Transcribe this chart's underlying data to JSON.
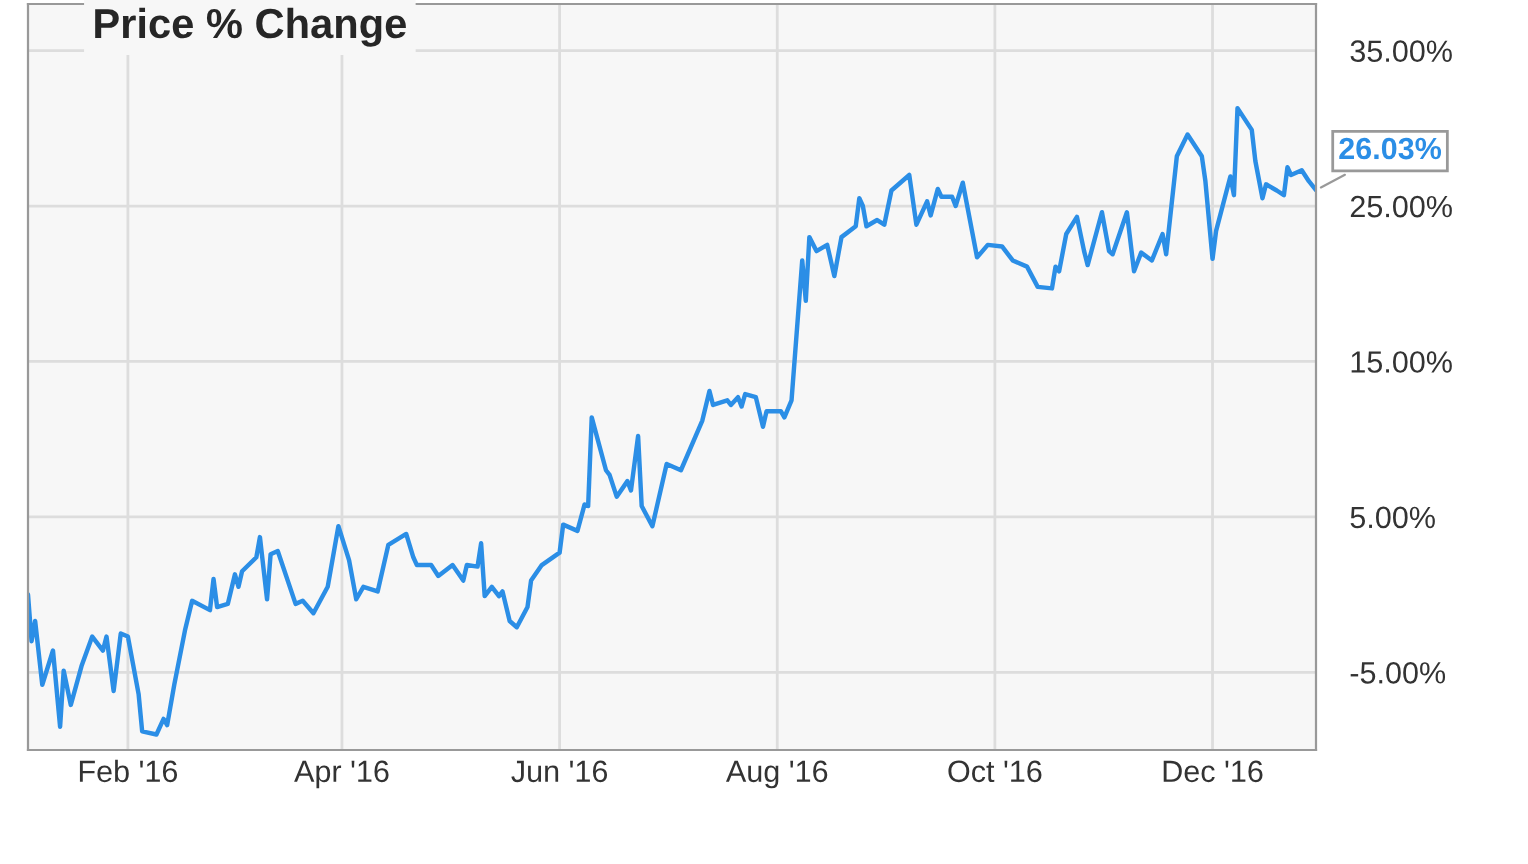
{
  "chart_data": {
    "type": "line",
    "title": "Price % Change",
    "x": [
      "2016-01-04",
      "2016-01-05",
      "2016-01-06",
      "2016-01-08",
      "2016-01-11",
      "2016-01-13",
      "2016-01-14",
      "2016-01-16",
      "2016-01-19",
      "2016-01-22",
      "2016-01-25",
      "2016-01-26",
      "2016-01-28",
      "2016-01-30",
      "2016-02-01",
      "2016-02-04",
      "2016-02-05",
      "2016-02-09",
      "2016-02-11",
      "2016-02-12",
      "2016-02-14",
      "2016-02-17",
      "2016-02-19",
      "2016-02-24",
      "2016-02-25",
      "2016-02-26",
      "2016-02-29",
      "2016-03-02",
      "2016-03-03",
      "2016-03-04",
      "2016-03-08",
      "2016-03-09",
      "2016-03-11",
      "2016-03-12",
      "2016-03-14",
      "2016-03-19",
      "2016-03-21",
      "2016-03-24",
      "2016-03-28",
      "2016-03-30",
      "2016-03-31",
      "2016-04-03",
      "2016-04-05",
      "2016-04-07",
      "2016-04-11",
      "2016-04-14",
      "2016-04-19",
      "2016-04-21",
      "2016-04-22",
      "2016-04-26",
      "2016-04-28",
      "2016-05-02",
      "2016-05-05",
      "2016-05-06",
      "2016-05-09",
      "2016-05-10",
      "2016-05-11",
      "2016-05-13",
      "2016-05-15",
      "2016-05-16",
      "2016-05-18",
      "2016-05-20",
      "2016-05-23",
      "2016-05-24",
      "2016-05-27",
      "2016-06-01",
      "2016-06-02",
      "2016-06-06",
      "2016-06-08",
      "2016-06-09",
      "2016-06-10",
      "2016-06-14",
      "2016-06-15",
      "2016-06-17",
      "2016-06-20",
      "2016-06-21",
      "2016-06-23",
      "2016-06-24",
      "2016-06-27",
      "2016-07-01",
      "2016-07-05",
      "2016-07-11",
      "2016-07-13",
      "2016-07-14",
      "2016-07-18",
      "2016-07-19",
      "2016-07-21",
      "2016-07-22",
      "2016-07-23",
      "2016-07-26",
      "2016-07-28",
      "2016-07-29",
      "2016-08-02",
      "2016-08-03",
      "2016-08-05",
      "2016-08-08",
      "2016-08-09",
      "2016-08-10",
      "2016-08-12",
      "2016-08-15",
      "2016-08-17",
      "2016-08-19",
      "2016-08-23",
      "2016-08-24",
      "2016-08-25",
      "2016-08-26",
      "2016-08-29",
      "2016-08-31",
      "2016-09-02",
      "2016-09-07",
      "2016-09-09",
      "2016-09-12",
      "2016-09-13",
      "2016-09-15",
      "2016-09-16",
      "2016-09-19",
      "2016-09-20",
      "2016-09-22",
      "2016-09-26",
      "2016-09-29",
      "2016-10-03",
      "2016-10-06",
      "2016-10-10",
      "2016-10-13",
      "2016-10-17",
      "2016-10-18",
      "2016-10-19",
      "2016-10-21",
      "2016-10-24",
      "2016-10-26",
      "2016-10-27",
      "2016-10-31",
      "2016-11-02",
      "2016-11-03",
      "2016-11-07",
      "2016-11-09",
      "2016-11-11",
      "2016-11-14",
      "2016-11-17",
      "2016-11-18",
      "2016-11-21",
      "2016-11-24",
      "2016-11-28",
      "2016-11-29",
      "2016-12-01",
      "2016-12-02",
      "2016-12-06",
      "2016-12-07",
      "2016-12-08",
      "2016-12-12",
      "2016-12-13",
      "2016-12-15",
      "2016-12-16",
      "2016-12-19",
      "2016-12-21",
      "2016-12-22",
      "2016-12-23",
      "2016-12-26",
      "2016-12-28",
      "2016-12-30"
    ],
    "series": [
      {
        "color": "#2b8ee6",
        "values": [
          0.0,
          -3.0,
          -1.7,
          -5.8,
          -3.6,
          -8.5,
          -4.9,
          -7.1,
          -4.6,
          -2.7,
          -3.6,
          -2.7,
          -6.2,
          -2.5,
          -2.7,
          -6.4,
          -8.8,
          -9.0,
          -8.0,
          -8.4,
          -5.8,
          -2.3,
          -0.4,
          -1.0,
          1.0,
          -0.8,
          -0.6,
          1.3,
          0.5,
          1.5,
          2.4,
          3.7,
          -0.3,
          2.6,
          2.8,
          -0.6,
          -0.4,
          -1.2,
          0.5,
          3.1,
          4.4,
          2.2,
          -0.3,
          0.5,
          0.2,
          3.2,
          3.9,
          2.4,
          1.9,
          1.9,
          1.2,
          1.9,
          0.9,
          1.9,
          1.8,
          3.3,
          -0.1,
          0.5,
          -0.1,
          0.2,
          -1.7,
          -2.1,
          -0.8,
          0.9,
          1.9,
          2.7,
          4.5,
          4.1,
          5.8,
          5.7,
          11.4,
          8.0,
          7.7,
          6.3,
          7.3,
          6.7,
          10.2,
          5.7,
          4.4,
          8.4,
          8.0,
          11.2,
          13.1,
          12.2,
          12.5,
          12.2,
          12.7,
          12.1,
          12.9,
          12.7,
          10.8,
          11.8,
          11.8,
          11.4,
          12.5,
          21.5,
          18.9,
          23.0,
          22.1,
          22.5,
          20.5,
          23.0,
          23.7,
          25.5,
          25.0,
          23.7,
          24.1,
          23.8,
          26.0,
          27.0,
          23.8,
          25.3,
          24.4,
          26.1,
          25.6,
          25.6,
          25.0,
          26.5,
          21.7,
          22.5,
          22.4,
          21.5,
          21.1,
          19.8,
          19.7,
          21.1,
          20.8,
          23.2,
          24.3,
          22.1,
          21.2,
          24.6,
          22.1,
          21.9,
          24.6,
          20.8,
          22.0,
          21.5,
          23.2,
          21.9,
          28.2,
          29.6,
          28.2,
          26.6,
          21.6,
          23.4,
          26.9,
          25.7,
          31.3,
          29.9,
          27.9,
          25.5,
          26.4,
          26.0,
          25.7,
          27.5,
          27.0,
          27.3,
          26.6,
          26.03
        ]
      }
    ],
    "xlim": [
      "2016-01-04",
      "2016-12-30"
    ],
    "xticks": [
      {
        "value": "2016-02-01",
        "label": "Feb '16"
      },
      {
        "value": "2016-04-01",
        "label": "Apr '16"
      },
      {
        "value": "2016-06-01",
        "label": "Jun '16"
      },
      {
        "value": "2016-08-01",
        "label": "Aug '16"
      },
      {
        "value": "2016-10-01",
        "label": "Oct '16"
      },
      {
        "value": "2016-12-01",
        "label": "Dec '16"
      }
    ],
    "ylim": [
      -10,
      38
    ],
    "yticks": [
      {
        "value": -5,
        "label": "-5.00%"
      },
      {
        "value": 5,
        "label": "5.00%"
      },
      {
        "value": 15,
        "label": "15.00%"
      },
      {
        "value": 25,
        "label": "25.00%"
      },
      {
        "value": 35,
        "label": "35.00%"
      }
    ],
    "annotations": [
      {
        "text": "26.03%",
        "x": "2016-12-30",
        "y": 26.03
      }
    ],
    "grid": true,
    "legend": false,
    "marker": "none",
    "line_style": "solid"
  }
}
